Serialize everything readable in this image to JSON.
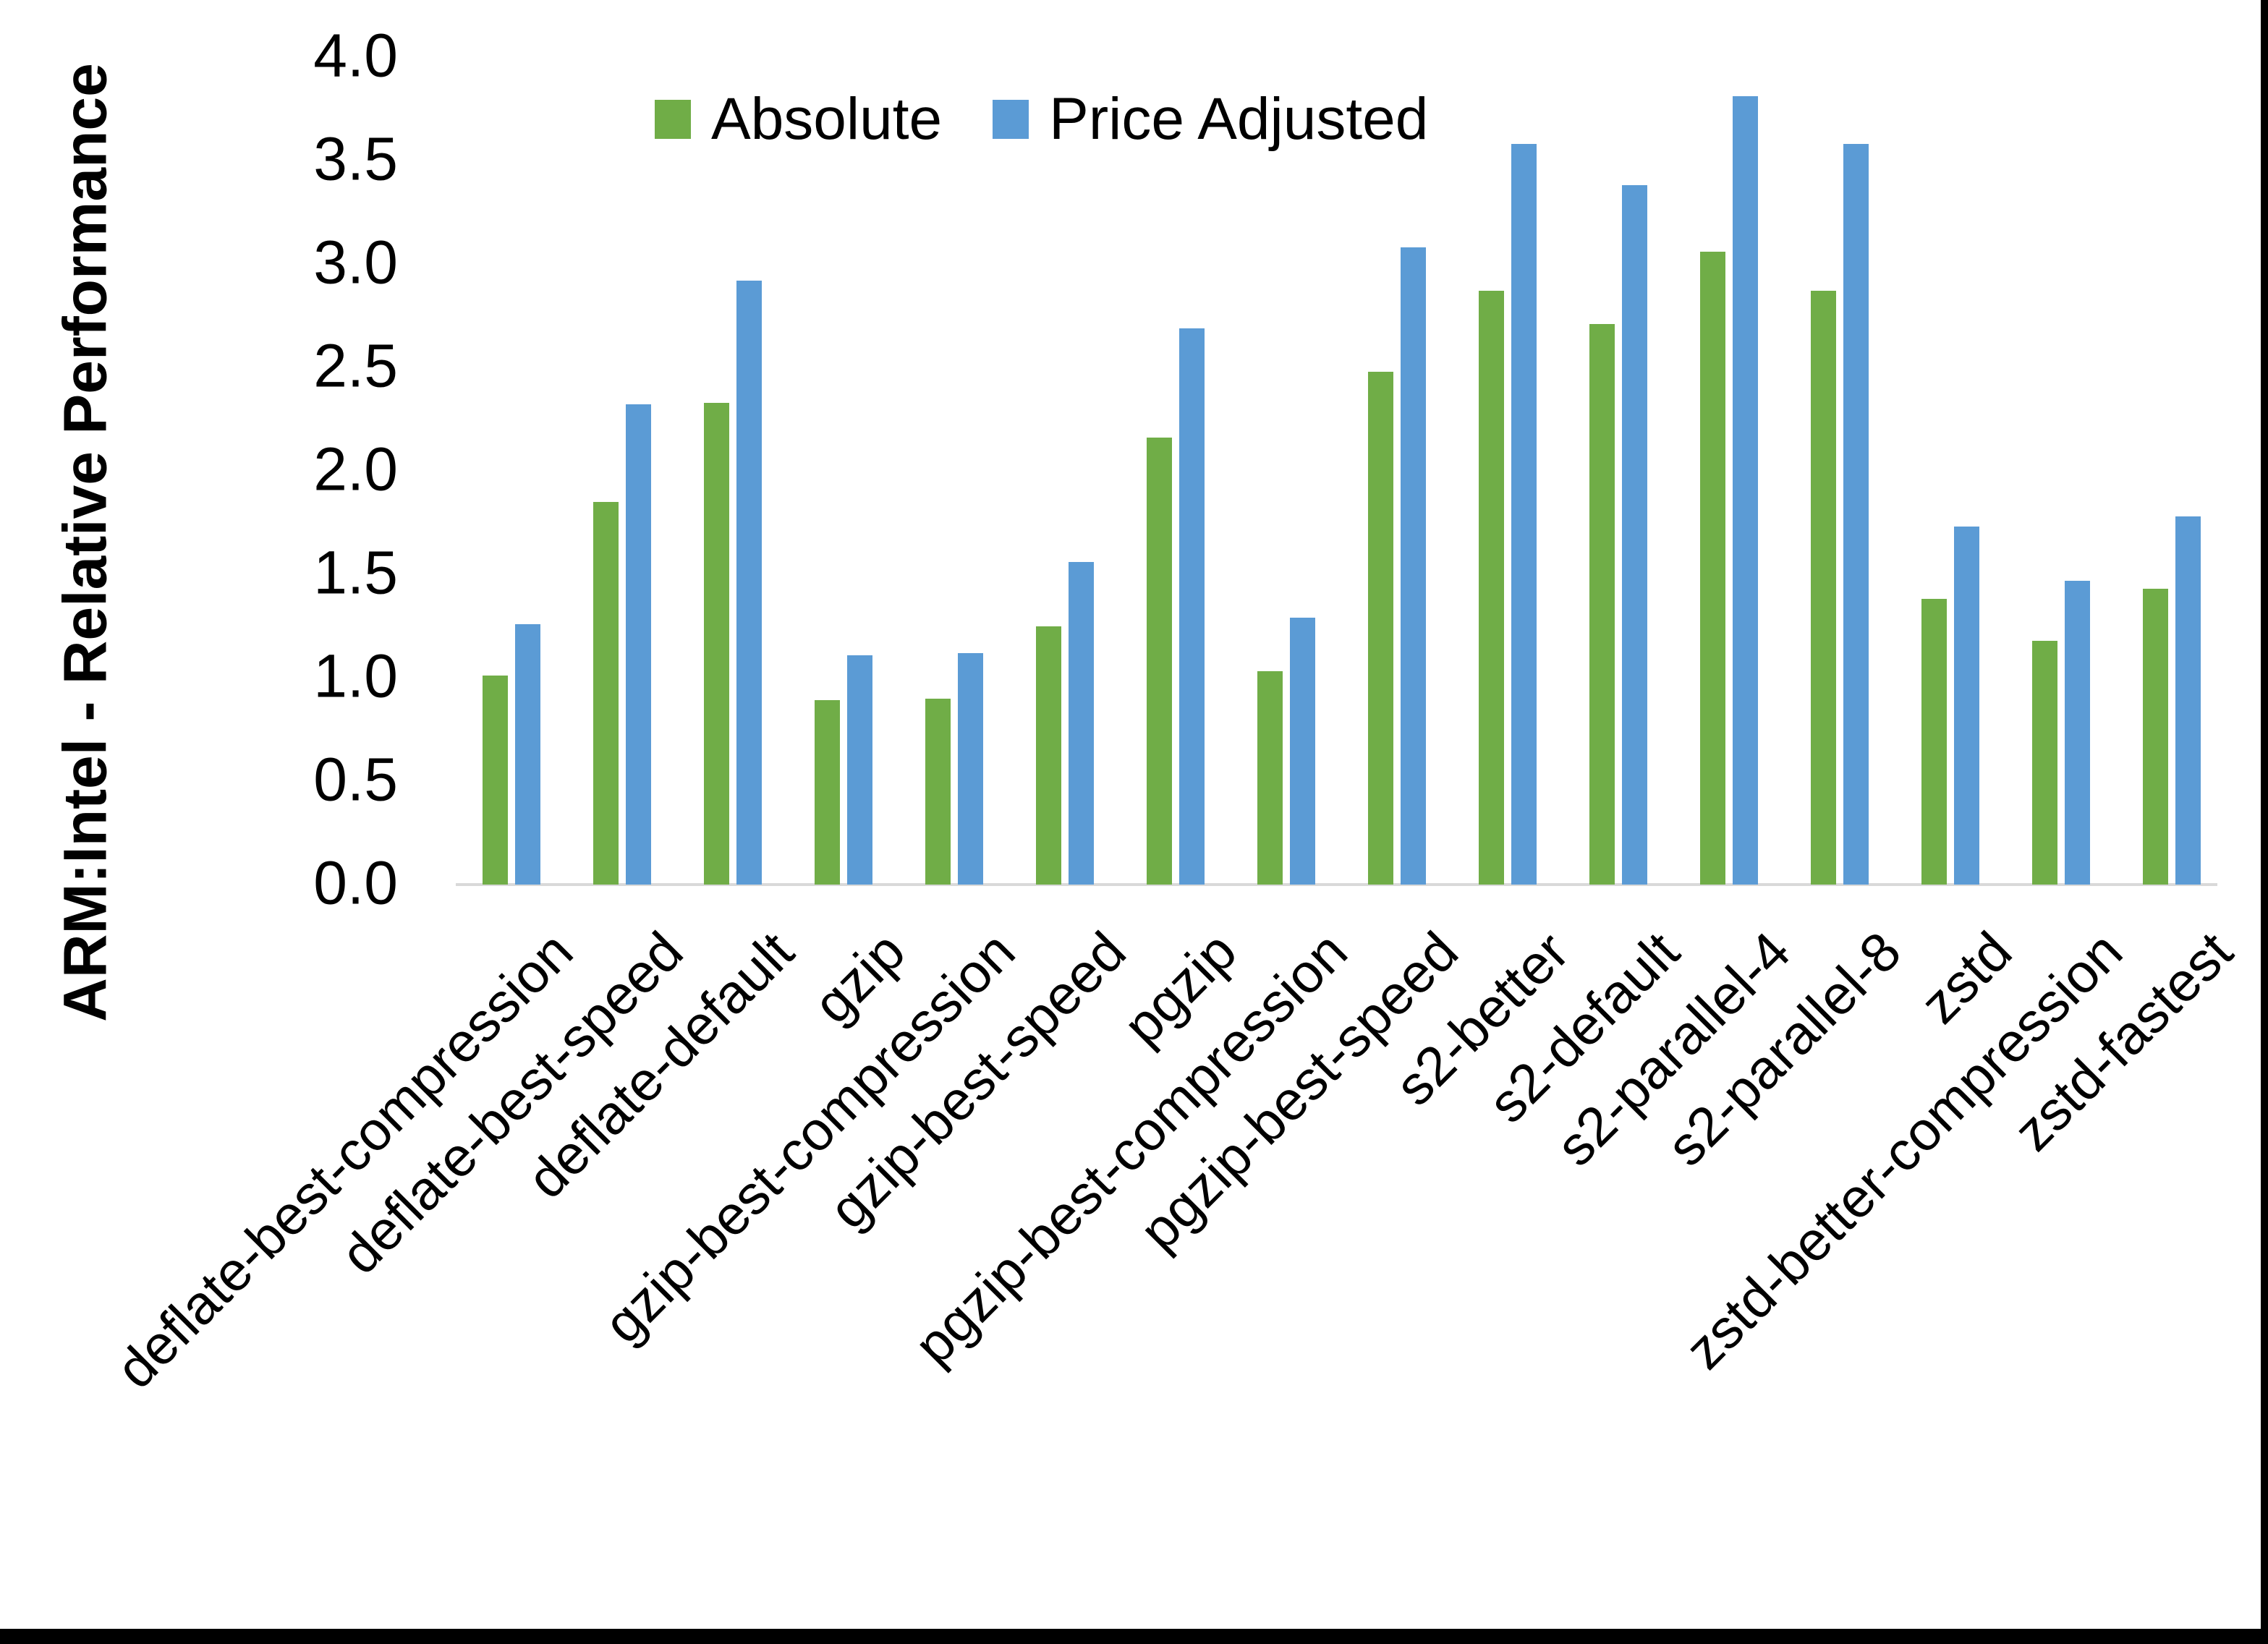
{
  "chart_data": {
    "type": "bar",
    "title": "",
    "ylabel": "ARM:Intel - Relative Performance",
    "xlabel": "",
    "ylim": [
      0.0,
      4.0
    ],
    "ytick_labels": [
      "0.0",
      "0.5",
      "1.0",
      "1.5",
      "2.0",
      "2.5",
      "3.0",
      "3.5",
      "4.0"
    ],
    "grid": false,
    "legend_position": "top-center",
    "categories": [
      "deflate-best-compression",
      "deflate-best-speed",
      "deflate-default",
      "gzip",
      "gzip-best-compression",
      "gzip-best-speed",
      "pgzip",
      "pgzip-best-compression",
      "pgzip-best-speed",
      "s2-better",
      "s2-default",
      "s2-parallel-4",
      "s2-parallel-8",
      "zstd",
      "zstd-better-compression",
      "zstd-fastest"
    ],
    "series": [
      {
        "name": "Absolute",
        "color": "#70AD47",
        "values": [
          1.01,
          1.85,
          2.33,
          0.89,
          0.9,
          1.25,
          2.16,
          1.03,
          2.48,
          2.87,
          2.71,
          3.06,
          2.87,
          1.38,
          1.18,
          1.43
        ]
      },
      {
        "name": "Price Adjusted",
        "color": "#5B9BD5",
        "values": [
          1.26,
          2.32,
          2.92,
          1.11,
          1.12,
          1.56,
          2.69,
          1.29,
          3.08,
          3.58,
          3.38,
          3.81,
          3.58,
          1.73,
          1.47,
          1.78
        ]
      }
    ]
  },
  "colors": {
    "background": "#FFFFFF",
    "text": "#000000",
    "axis_line": "#D9D9D9",
    "border": "#000000"
  }
}
